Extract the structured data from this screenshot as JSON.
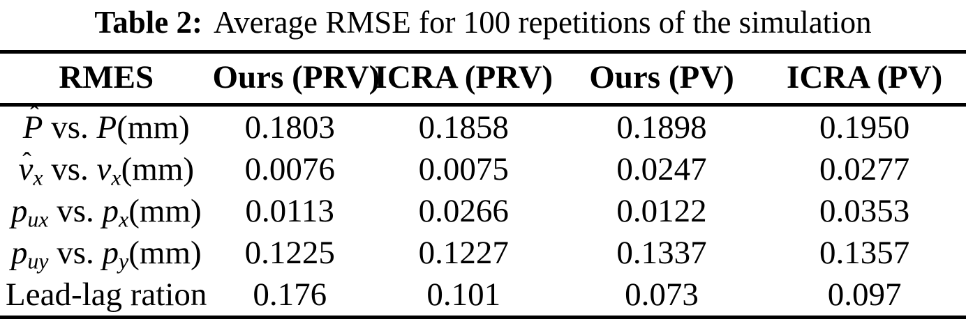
{
  "caption": {
    "label": "Table 2:",
    "text": "Average RMSE for 100 repetitions of the simulation"
  },
  "symbols": {
    "hat": "ˆ"
  },
  "colors": {
    "text": "#000000",
    "background": "#ffffff",
    "rule": "#000000"
  },
  "table": {
    "headers": [
      "RMES",
      "Ours (PRV)",
      "ICRA (PRV)",
      "Ours (PV)",
      "ICRA (PV)"
    ],
    "rows": [
      {
        "label_parts": [
          {
            "t": "P",
            "i": true,
            "hat": true
          },
          {
            "t": " vs. "
          },
          {
            "t": "P",
            "i": true
          },
          {
            "t": "(mm)"
          }
        ],
        "values": [
          "0.1803",
          "0.1858",
          "0.1898",
          "0.1950"
        ]
      },
      {
        "label_parts": [
          {
            "t": "v",
            "i": true,
            "hat": true
          },
          {
            "t": "x",
            "i": true,
            "sub": true
          },
          {
            "t": " vs. "
          },
          {
            "t": "v",
            "i": true
          },
          {
            "t": "x",
            "i": true,
            "sub": true
          },
          {
            "t": "(mm)"
          }
        ],
        "values": [
          "0.0076",
          "0.0075",
          "0.0247",
          "0.0277"
        ]
      },
      {
        "label_parts": [
          {
            "t": "p",
            "i": true
          },
          {
            "t": "ux",
            "i": true,
            "sub": true
          },
          {
            "t": " vs. "
          },
          {
            "t": "p",
            "i": true
          },
          {
            "t": "x",
            "i": true,
            "sub": true
          },
          {
            "t": "(mm)"
          }
        ],
        "values": [
          "0.0113",
          "0.0266",
          "0.0122",
          "0.0353"
        ]
      },
      {
        "label_parts": [
          {
            "t": "p",
            "i": true
          },
          {
            "t": "uy",
            "i": true,
            "sub": true
          },
          {
            "t": " vs. "
          },
          {
            "t": "p",
            "i": true
          },
          {
            "t": "y",
            "i": true,
            "sub": true
          },
          {
            "t": "(mm)"
          }
        ],
        "values": [
          "0.1225",
          "0.1227",
          "0.1337",
          "0.1357"
        ]
      },
      {
        "label_parts": [
          {
            "t": "Lead-lag ration"
          }
        ],
        "values": [
          "0.176",
          "0.101",
          "0.073",
          "0.097"
        ]
      }
    ]
  }
}
